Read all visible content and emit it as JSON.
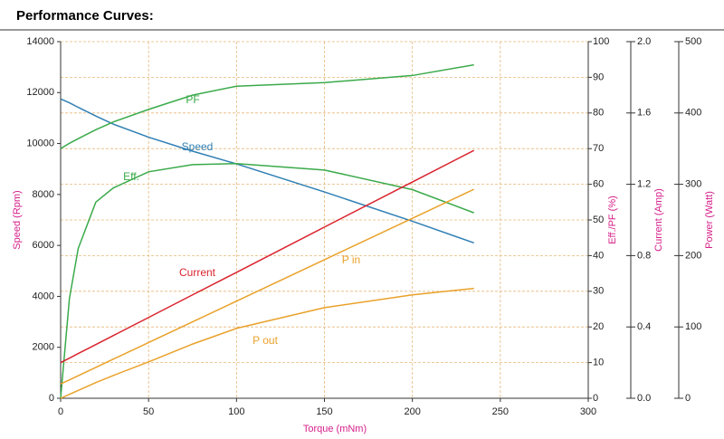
{
  "chart_data": {
    "type": "line",
    "title": "Performance Curves:",
    "x_label": "Torque (mNm)",
    "y_label": "Speed (Rpm)",
    "y2_label": "Eff./PF (%)",
    "y3_label": "Current (Amp)",
    "y4_label": "Power (Watt)",
    "x": [
      0,
      5,
      10,
      20,
      30,
      50,
      75,
      100,
      150,
      200,
      235
    ],
    "xlim": [
      0,
      300
    ],
    "xticks": [
      0,
      50,
      100,
      150,
      200,
      250,
      300
    ],
    "ylim": [
      0,
      14000
    ],
    "yticks": [
      0,
      2000,
      4000,
      6000,
      8000,
      10000,
      12000,
      14000
    ],
    "y2lim": [
      0,
      100
    ],
    "y2ticks": [
      0,
      10,
      20,
      30,
      40,
      50,
      60,
      70,
      80,
      90,
      100
    ],
    "y3lim": [
      0,
      2
    ],
    "y3ticks": [
      {
        "value": 0,
        "label": "0.0"
      },
      0.4,
      0.8,
      1.2,
      1.6,
      {
        "value": 2,
        "label": "2.0"
      }
    ],
    "y4lim": [
      0,
      500
    ],
    "y4ticks": [
      0,
      100,
      200,
      300,
      400,
      500
    ],
    "grid": true,
    "series": [
      {
        "name": "Speed",
        "color": "#2f7fb4",
        "axis": "y",
        "values": [
          11750,
          11600,
          11420,
          11080,
          10760,
          10250,
          9700,
          9200,
          8100,
          6950,
          6100
        ]
      },
      {
        "name": "Eff.",
        "color": "#3aaa4a",
        "axis": "y2",
        "values": [
          0,
          28,
          42,
          55,
          59,
          63.5,
          65.5,
          65.8,
          64,
          58.5,
          52
        ]
      },
      {
        "name": "PF",
        "color": "#3aaa4a",
        "axis": "y2",
        "values": [
          70,
          71.5,
          72.8,
          75.3,
          77.5,
          81,
          85,
          87.5,
          88.5,
          90.5,
          93.5
        ]
      },
      {
        "name": "Current",
        "color": "#d9232e",
        "axis": "y3",
        "values": [
          0.2,
          0.225,
          0.251,
          0.301,
          0.352,
          0.453,
          0.58,
          0.706,
          0.96,
          1.213,
          1.39
        ]
      },
      {
        "name": "P in",
        "color": "#e9a12a",
        "axis": "y4",
        "values": [
          20,
          25.8,
          31.6,
          43.2,
          54.9,
          78.1,
          107.1,
          136.2,
          194.3,
          252.3,
          293
        ]
      },
      {
        "name": "P out",
        "color": "#e9a12a",
        "axis": "y4",
        "values": [
          0,
          5.5,
          11,
          22,
          32,
          51,
          76,
          98,
          127,
          145,
          154
        ]
      }
    ]
  }
}
